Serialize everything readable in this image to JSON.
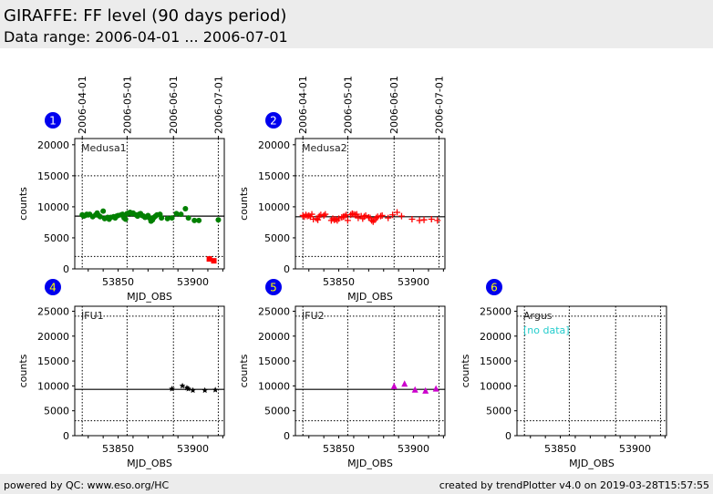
{
  "header": {
    "title": "GIRAFFE: FF level (90 days period)",
    "range": "Data range: 2006-04-01 ... 2006-07-01"
  },
  "footer": {
    "left": "powered by QC: www.eso.org/HC",
    "right": "created by trendPlotter v4.0 on 2019-03-28T15:57:55"
  },
  "chart_data": [
    {
      "type": "scatter",
      "id": "1",
      "label": "Medusa1",
      "xlabel": "MJD_OBS",
      "ylabel": "counts",
      "xlim": [
        53821,
        53921
      ],
      "ylim": [
        0,
        21000
      ],
      "yticks": [
        0,
        5000,
        10000,
        15000,
        20000
      ],
      "xticks": [
        53850,
        53900
      ],
      "dates": [
        {
          "label": "2006-04-01",
          "mjd": 53826
        },
        {
          "label": "2006-05-01",
          "mjd": 53856
        },
        {
          "label": "2006-06-01",
          "mjd": 53887
        },
        {
          "label": "2006-07-01",
          "mjd": 53917
        }
      ],
      "mean": 8500,
      "thresholds": [
        15000,
        2000
      ],
      "series": [
        {
          "name": "ok",
          "marker": "circle",
          "color": "#008000",
          "x": [
            53826,
            53827,
            53828,
            53829,
            53830,
            53831,
            53833,
            53835,
            53836,
            53837,
            53838,
            53840,
            53841,
            53843,
            53844,
            53845,
            53847,
            53848,
            53849,
            53850,
            53852,
            53853,
            53854,
            53855,
            53856,
            53857,
            53858,
            53859,
            53860,
            53862,
            53863,
            53864,
            53865,
            53866,
            53867,
            53868,
            53870,
            53871,
            53872,
            53873,
            53874,
            53875,
            53876,
            53878,
            53879,
            53883,
            53886,
            53889,
            53892,
            53895,
            53897,
            53901,
            53904,
            53917
          ],
          "y": [
            8700,
            8500,
            8600,
            8800,
            8700,
            8800,
            8400,
            8700,
            9000,
            8600,
            8400,
            9300,
            8100,
            8300,
            8000,
            8300,
            8400,
            8200,
            8500,
            8600,
            8700,
            8800,
            8200,
            8000,
            8900,
            9000,
            9100,
            8900,
            9000,
            8700,
            8500,
            8800,
            8900,
            8600,
            8500,
            8300,
            8600,
            8200,
            7700,
            7900,
            8300,
            8500,
            8700,
            8800,
            8200,
            8100,
            8200,
            8900,
            8800,
            9700,
            8200,
            7800,
            7800,
            7900
          ]
        },
        {
          "name": "outlier",
          "marker": "square",
          "color": "#ff0000",
          "x": [
            53911,
            53914
          ],
          "y": [
            1600,
            1300
          ]
        }
      ]
    },
    {
      "type": "scatter",
      "id": "2",
      "label": "Medusa2",
      "xlabel": "MJD_OBS",
      "ylabel": "counts",
      "xlim": [
        53821,
        53921
      ],
      "ylim": [
        0,
        21000
      ],
      "yticks": [
        0,
        5000,
        10000,
        15000,
        20000
      ],
      "xticks": [
        53850,
        53900
      ],
      "dates": [
        {
          "label": "2006-04-01",
          "mjd": 53826
        },
        {
          "label": "2006-05-01",
          "mjd": 53856
        },
        {
          "label": "2006-06-01",
          "mjd": 53887
        },
        {
          "label": "2006-07-01",
          "mjd": 53917
        }
      ],
      "mean": 8400,
      "thresholds": [
        15000,
        2000
      ],
      "series": [
        {
          "name": "ok",
          "marker": "plus",
          "color": "#ff0000",
          "x": [
            53826,
            53827,
            53828,
            53829,
            53830,
            53831,
            53832,
            53833,
            53835,
            53836,
            53837,
            53838,
            53840,
            53841,
            53845,
            53846,
            53847,
            53848,
            53849,
            53850,
            53852,
            53853,
            53854,
            53855,
            53856,
            53858,
            53859,
            53860,
            53861,
            53862,
            53863,
            53865,
            53866,
            53867,
            53868,
            53870,
            53871,
            53872,
            53873,
            53874,
            53875,
            53876,
            53878,
            53879,
            53883,
            53886,
            53889,
            53892,
            53899,
            53904,
            53907,
            53912,
            53916
          ],
          "y": [
            8600,
            8400,
            8700,
            8500,
            8600,
            8400,
            8800,
            8000,
            8100,
            7900,
            8500,
            8700,
            8600,
            8800,
            7800,
            8100,
            7900,
            8000,
            7800,
            8100,
            8300,
            8400,
            8500,
            8700,
            7800,
            8700,
            8900,
            8800,
            8700,
            8800,
            8200,
            8500,
            8100,
            8400,
            8600,
            8300,
            8200,
            7800,
            7600,
            7900,
            8200,
            8400,
            8500,
            8600,
            8200,
            8700,
            9100,
            8500,
            8000,
            7800,
            7900,
            8000,
            7800
          ]
        }
      ]
    },
    {
      "type": "scatter",
      "id": "4",
      "label": "IFU1",
      "xlabel": "MJD_OBS",
      "ylabel": "counts",
      "xlim": [
        53821,
        53921
      ],
      "ylim": [
        0,
        26000
      ],
      "yticks": [
        0,
        5000,
        10000,
        15000,
        20000,
        25000
      ],
      "xticks": [
        53850,
        53900
      ],
      "dates": [
        {
          "label": "2006-04-01",
          "mjd": 53826
        },
        {
          "label": "2006-05-01",
          "mjd": 53856
        },
        {
          "label": "2006-06-01",
          "mjd": 53887
        },
        {
          "label": "2006-07-01",
          "mjd": 53917
        }
      ],
      "mean": 9300,
      "thresholds": [
        24000,
        3000
      ],
      "series": [
        {
          "name": "ok",
          "marker": "star",
          "color": "#000000",
          "x": [
            53886,
            53893,
            53896,
            53897,
            53900,
            53908,
            53915
          ],
          "y": [
            9400,
            10000,
            9600,
            9400,
            9100,
            9100,
            9200
          ]
        }
      ]
    },
    {
      "type": "scatter",
      "id": "5",
      "label": "IFU2",
      "xlabel": "MJD_OBS",
      "ylabel": "counts",
      "xlim": [
        53821,
        53921
      ],
      "ylim": [
        0,
        26000
      ],
      "yticks": [
        0,
        5000,
        10000,
        15000,
        20000,
        25000
      ],
      "xticks": [
        53850,
        53900
      ],
      "dates": [
        {
          "label": "2006-04-01",
          "mjd": 53826
        },
        {
          "label": "2006-05-01",
          "mjd": 53856
        },
        {
          "label": "2006-06-01",
          "mjd": 53887
        },
        {
          "label": "2006-07-01",
          "mjd": 53917
        }
      ],
      "mean": 9300,
      "thresholds": [
        24000,
        3000
      ],
      "series": [
        {
          "name": "ok",
          "marker": "triangle",
          "color": "#cc00cc",
          "x": [
            53887,
            53894,
            53901,
            53908,
            53915
          ],
          "y": [
            9900,
            10400,
            9200,
            9000,
            9400
          ]
        }
      ]
    },
    {
      "type": "scatter",
      "id": "6",
      "label": "Argus",
      "nodata": "[no data]",
      "xlabel": "MJD_OBS",
      "ylabel": "counts",
      "xlim": [
        53821,
        53921
      ],
      "ylim": [
        0,
        26000
      ],
      "yticks": [
        0,
        5000,
        10000,
        15000,
        20000,
        25000
      ],
      "xticks": [
        53850,
        53900
      ],
      "dates": [
        {
          "label": "2006-04-01",
          "mjd": 53826
        },
        {
          "label": "2006-05-01",
          "mjd": 53856
        },
        {
          "label": "2006-06-01",
          "mjd": 53887
        },
        {
          "label": "2006-07-01",
          "mjd": 53917
        }
      ],
      "thresholds": [
        24000,
        3000
      ],
      "series": []
    }
  ]
}
